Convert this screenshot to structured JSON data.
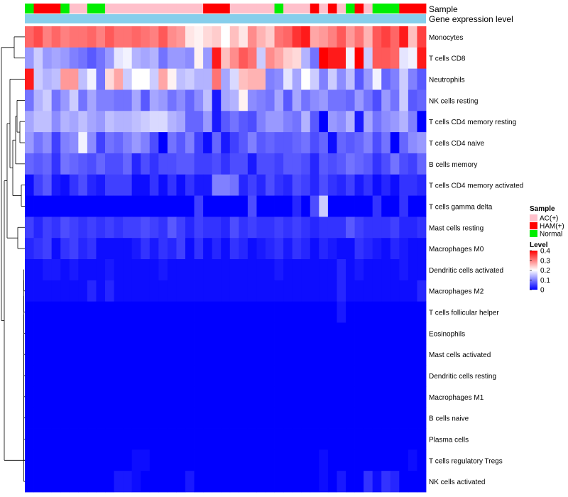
{
  "chart_data": {
    "type": "heatmap",
    "title": "",
    "annotation_rows": [
      "Sample",
      "Gene expression level"
    ],
    "sample_groups": [
      "Normal",
      "HAM(+)",
      "HAM(+)",
      "HAM(+)",
      "Normal",
      "AC(+)",
      "AC(+)",
      "Normal",
      "Normal",
      "AC(+)",
      "AC(+)",
      "AC(+)",
      "AC(+)",
      "AC(+)",
      "AC(+)",
      "AC(+)",
      "AC(+)",
      "AC(+)",
      "AC(+)",
      "AC(+)",
      "HAM(+)",
      "HAM(+)",
      "HAM(+)",
      "AC(+)",
      "AC(+)",
      "AC(+)",
      "AC(+)",
      "AC(+)",
      "Normal",
      "AC(+)",
      "AC(+)",
      "AC(+)",
      "HAM(+)",
      "AC(+)",
      "HAM(+)",
      "AC(+)",
      "Normal",
      "HAM(+)",
      "AC(+)",
      "Normal",
      "Normal",
      "Normal",
      "HAM(+)",
      "HAM(+)",
      "HAM(+)"
    ],
    "rows": [
      "Monocytes",
      "T cells CD8",
      "Neutrophils",
      "NK cells resting",
      "T cells CD4 memory resting",
      "T cells CD4 naive",
      "B cells memory",
      "T cells CD4 memory activated",
      "T cells gamma delta",
      "Mast cells resting",
      "Macrophages M0",
      "Dendritic cells activated",
      "Macrophages M2",
      "T cells follicular helper",
      "Eosinophils",
      "Mast cells activated",
      "Dendritic cells resting",
      "Macrophages M1",
      "B cells naive",
      "Plasma cells",
      "T cells regulatory  Tregs",
      "NK cells activated"
    ],
    "values": [
      [
        0.32,
        0.34,
        0.3,
        0.32,
        0.3,
        0.31,
        0.31,
        0.32,
        0.3,
        0.33,
        0.31,
        0.31,
        0.32,
        0.31,
        0.3,
        0.33,
        0.29,
        0.28,
        0.22,
        0.21,
        0.23,
        0.24,
        0.2,
        0.25,
        0.22,
        0.29,
        0.26,
        0.24,
        0.31,
        0.32,
        0.36,
        0.38,
        0.27,
        0.28,
        0.3,
        0.33,
        0.28,
        0.31,
        0.26,
        0.33,
        0.35,
        0.32,
        0.38,
        0.25,
        0.35
      ],
      [
        0.12,
        0.16,
        0.12,
        0.13,
        0.12,
        0.1,
        0.09,
        0.07,
        0.09,
        0.12,
        0.18,
        0.19,
        0.14,
        0.13,
        0.14,
        0.09,
        0.12,
        0.12,
        0.11,
        0.21,
        0.12,
        0.38,
        0.25,
        0.29,
        0.33,
        0.31,
        0.16,
        0.29,
        0.27,
        0.24,
        0.23,
        0.14,
        0.09,
        0.4,
        0.38,
        0.38,
        0.19,
        0.41,
        0.16,
        0.33,
        0.33,
        0.32,
        0.18,
        0.19,
        0.38
      ],
      [
        0.38,
        0.16,
        0.14,
        0.15,
        0.28,
        0.28,
        0.15,
        0.19,
        0.09,
        0.23,
        0.27,
        0.16,
        0.2,
        0.2,
        0.16,
        0.27,
        0.21,
        0.15,
        0.16,
        0.14,
        0.14,
        0.31,
        0.13,
        0.17,
        0.25,
        0.26,
        0.26,
        0.1,
        0.11,
        0.18,
        0.13,
        0.2,
        0.16,
        0.1,
        0.16,
        0.11,
        0.15,
        0.07,
        0.12,
        0.19,
        0.08,
        0.1,
        0.16,
        0.1,
        0.07
      ],
      [
        0.09,
        0.14,
        0.16,
        0.09,
        0.12,
        0.16,
        0.09,
        0.13,
        0.1,
        0.1,
        0.09,
        0.09,
        0.13,
        0.07,
        0.13,
        0.12,
        0.09,
        0.11,
        0.08,
        0.11,
        0.15,
        0.02,
        0.13,
        0.14,
        0.21,
        0.11,
        0.1,
        0.09,
        0.13,
        0.07,
        0.13,
        0.09,
        0.11,
        0.12,
        0.09,
        0.09,
        0.08,
        0.12,
        0.09,
        0.06,
        0.12,
        0.09,
        0.16,
        0.07,
        0.08
      ],
      [
        0.13,
        0.15,
        0.15,
        0.11,
        0.14,
        0.13,
        0.15,
        0.13,
        0.12,
        0.15,
        0.14,
        0.14,
        0.15,
        0.16,
        0.17,
        0.17,
        0.14,
        0.13,
        0.08,
        0.08,
        0.12,
        0.02,
        0.07,
        0.09,
        0.07,
        0.06,
        0.1,
        0.12,
        0.12,
        0.1,
        0.09,
        0.14,
        0.07,
        0.0,
        0.12,
        0.11,
        0.14,
        0.02,
        0.13,
        0.09,
        0.11,
        0.12,
        0.14,
        0.1,
        0.0
      ],
      [
        0.12,
        0.09,
        0.11,
        0.05,
        0.1,
        0.11,
        0.19,
        0.11,
        0.05,
        0.09,
        0.08,
        0.1,
        0.12,
        0.1,
        0.06,
        0.0,
        0.09,
        0.07,
        0.1,
        0.05,
        0.01,
        0.08,
        0.02,
        0.05,
        0.07,
        0.1,
        0.07,
        0.08,
        0.07,
        0.07,
        0.08,
        0.09,
        0.06,
        0.08,
        0.01,
        0.08,
        0.07,
        0.08,
        0.1,
        0.06,
        0.09,
        0.0,
        0.08,
        0.11,
        0.12
      ],
      [
        0.08,
        0.07,
        0.08,
        0.04,
        0.09,
        0.08,
        0.07,
        0.06,
        0.08,
        0.06,
        0.06,
        0.08,
        0.03,
        0.06,
        0.04,
        0.06,
        0.06,
        0.07,
        0.07,
        0.05,
        0.05,
        0.06,
        0.04,
        0.06,
        0.06,
        0.02,
        0.06,
        0.06,
        0.05,
        0.07,
        0.07,
        0.06,
        0.03,
        0.07,
        0.06,
        0.07,
        0.09,
        0.08,
        0.07,
        0.04,
        0.06,
        0.09,
        0.06,
        0.05,
        0.08
      ],
      [
        0.01,
        0.05,
        0.07,
        0.02,
        0.01,
        0.04,
        0.06,
        0.03,
        0.02,
        0.05,
        0.05,
        0.05,
        0.01,
        0.01,
        0.04,
        0.01,
        0.04,
        0.01,
        0.04,
        0.02,
        0.02,
        0.1,
        0.1,
        0.09,
        0.03,
        0.05,
        0.03,
        0.06,
        0.04,
        0.03,
        0.06,
        0.05,
        0.03,
        0.06,
        0.04,
        0.03,
        0.05,
        0.02,
        0.04,
        0.01,
        0.03,
        0.01,
        0.04,
        0.04,
        0.03
      ],
      [
        0.0,
        0.0,
        0.0,
        0.0,
        0.0,
        0.0,
        0.0,
        0.0,
        0.0,
        0.0,
        0.0,
        0.0,
        0.0,
        0.0,
        0.0,
        0.0,
        0.0,
        0.0,
        0.0,
        0.05,
        0.0,
        0.0,
        0.0,
        0.0,
        0.0,
        0.06,
        0.0,
        0.0,
        0.0,
        0.0,
        0.03,
        0.0,
        0.06,
        0.16,
        0.0,
        0.0,
        0.0,
        0.0,
        0.0,
        0.04,
        0.0,
        0.0,
        0.04,
        0.0,
        0.0
      ],
      [
        0.05,
        0.03,
        0.05,
        0.04,
        0.06,
        0.05,
        0.04,
        0.05,
        0.04,
        0.05,
        0.04,
        0.05,
        0.05,
        0.06,
        0.05,
        0.04,
        0.07,
        0.05,
        0.03,
        0.05,
        0.04,
        0.04,
        0.03,
        0.06,
        0.04,
        0.05,
        0.04,
        0.04,
        0.05,
        0.04,
        0.05,
        0.04,
        0.03,
        0.04,
        0.04,
        0.04,
        0.07,
        0.05,
        0.04,
        0.04,
        0.04,
        0.05,
        0.03,
        0.03,
        0.04
      ],
      [
        0.03,
        0.04,
        0.05,
        0.01,
        0.04,
        0.05,
        0.03,
        0.04,
        0.01,
        0.01,
        0.01,
        0.01,
        0.02,
        0.04,
        0.02,
        0.04,
        0.03,
        0.05,
        0.01,
        0.04,
        0.01,
        0.03,
        0.01,
        0.04,
        0.03,
        0.01,
        0.02,
        0.03,
        0.04,
        0.02,
        0.04,
        0.03,
        0.01,
        0.03,
        0.02,
        0.01,
        0.01,
        0.04,
        0.03,
        0.02,
        0.01,
        0.03,
        0.02,
        0.01,
        0.01
      ],
      [
        0.01,
        0.01,
        0.02,
        0.02,
        0.01,
        0.02,
        0.01,
        0.01,
        0.01,
        0.02,
        0.01,
        0.01,
        0.01,
        0.01,
        0.01,
        0.02,
        0.01,
        0.01,
        0.01,
        0.01,
        0.01,
        0.01,
        0.01,
        0.01,
        0.01,
        0.01,
        0.01,
        0.01,
        0.02,
        0.01,
        0.01,
        0.01,
        0.01,
        0.01,
        0.01,
        0.03,
        0.01,
        0.02,
        0.01,
        0.01,
        0.01,
        0.01,
        0.02,
        0.01,
        0.01
      ],
      [
        0.01,
        0.01,
        0.01,
        0.01,
        0.01,
        0.01,
        0.01,
        0.03,
        0.01,
        0.03,
        0.01,
        0.01,
        0.01,
        0.01,
        0.01,
        0.01,
        0.01,
        0.01,
        0.01,
        0.01,
        0.01,
        0.01,
        0.01,
        0.01,
        0.01,
        0.01,
        0.01,
        0.01,
        0.01,
        0.01,
        0.01,
        0.01,
        0.01,
        0.01,
        0.01,
        0.03,
        0.01,
        0.01,
        0.01,
        0.01,
        0.01,
        0.01,
        0.01,
        0.01,
        0.03
      ],
      [
        0.0,
        0.0,
        0.0,
        0.0,
        0.0,
        0.0,
        0.0,
        0.0,
        0.0,
        0.0,
        0.0,
        0.0,
        0.0,
        0.0,
        0.0,
        0.0,
        0.0,
        0.0,
        0.0,
        0.0,
        0.0,
        0.0,
        0.0,
        0.0,
        0.0,
        0.0,
        0.0,
        0.0,
        0.0,
        0.0,
        0.0,
        0.0,
        0.0,
        0.0,
        0.0,
        0.02,
        0.0,
        0.0,
        0.0,
        0.0,
        0.0,
        0.0,
        0.0,
        0.0,
        0.0
      ],
      [
        0.0,
        0.0,
        0.0,
        0.0,
        0.0,
        0.0,
        0.0,
        0.0,
        0.0,
        0.0,
        0.0,
        0.0,
        0.0,
        0.0,
        0.0,
        0.0,
        0.0,
        0.0,
        0.0,
        0.0,
        0.0,
        0.0,
        0.0,
        0.0,
        0.0,
        0.0,
        0.0,
        0.0,
        0.0,
        0.0,
        0.0,
        0.0,
        0.0,
        0.0,
        0.0,
        0.0,
        0.0,
        0.0,
        0.0,
        0.0,
        0.0,
        0.0,
        0.0,
        0.0,
        0.0
      ],
      [
        0.0,
        0.0,
        0.0,
        0.0,
        0.0,
        0.0,
        0.0,
        0.0,
        0.0,
        0.0,
        0.0,
        0.0,
        0.0,
        0.0,
        0.0,
        0.0,
        0.0,
        0.0,
        0.0,
        0.0,
        0.0,
        0.0,
        0.0,
        0.0,
        0.0,
        0.0,
        0.0,
        0.0,
        0.0,
        0.0,
        0.0,
        0.0,
        0.0,
        0.0,
        0.0,
        0.0,
        0.0,
        0.0,
        0.0,
        0.0,
        0.0,
        0.0,
        0.0,
        0.0,
        0.0
      ],
      [
        0.0,
        0.0,
        0.0,
        0.0,
        0.0,
        0.0,
        0.0,
        0.0,
        0.0,
        0.0,
        0.0,
        0.0,
        0.0,
        0.0,
        0.0,
        0.0,
        0.0,
        0.0,
        0.0,
        0.0,
        0.0,
        0.0,
        0.0,
        0.0,
        0.0,
        0.0,
        0.0,
        0.0,
        0.0,
        0.0,
        0.0,
        0.0,
        0.0,
        0.0,
        0.0,
        0.0,
        0.0,
        0.0,
        0.0,
        0.0,
        0.0,
        0.0,
        0.0,
        0.0,
        0.0
      ],
      [
        0.0,
        0.0,
        0.0,
        0.0,
        0.0,
        0.0,
        0.0,
        0.0,
        0.0,
        0.0,
        0.0,
        0.0,
        0.0,
        0.0,
        0.0,
        0.0,
        0.0,
        0.0,
        0.0,
        0.0,
        0.0,
        0.0,
        0.0,
        0.0,
        0.0,
        0.0,
        0.0,
        0.0,
        0.0,
        0.0,
        0.0,
        0.0,
        0.0,
        0.0,
        0.0,
        0.0,
        0.0,
        0.0,
        0.0,
        0.0,
        0.0,
        0.0,
        0.0,
        0.0,
        0.0
      ],
      [
        0.0,
        0.0,
        0.0,
        0.0,
        0.0,
        0.0,
        0.0,
        0.0,
        0.0,
        0.0,
        0.0,
        0.0,
        0.0,
        0.0,
        0.0,
        0.0,
        0.0,
        0.0,
        0.0,
        0.0,
        0.0,
        0.0,
        0.0,
        0.0,
        0.0,
        0.0,
        0.0,
        0.0,
        0.0,
        0.0,
        0.0,
        0.0,
        0.0,
        0.0,
        0.0,
        0.0,
        0.0,
        0.0,
        0.0,
        0.0,
        0.0,
        0.0,
        0.0,
        0.0,
        0.0
      ],
      [
        0.0,
        0.0,
        0.0,
        0.0,
        0.0,
        0.0,
        0.0,
        0.0,
        0.0,
        0.0,
        0.0,
        0.0,
        0.0,
        0.0,
        0.0,
        0.0,
        0.0,
        0.0,
        0.0,
        0.0,
        0.0,
        0.0,
        0.0,
        0.0,
        0.0,
        0.0,
        0.0,
        0.0,
        0.0,
        0.0,
        0.0,
        0.0,
        0.0,
        0.0,
        0.0,
        0.0,
        0.0,
        0.0,
        0.0,
        0.0,
        0.0,
        0.0,
        0.0,
        0.0,
        0.0
      ],
      [
        0.0,
        0.0,
        0.0,
        0.0,
        0.0,
        0.0,
        0.0,
        0.0,
        0.0,
        0.0,
        0.0,
        0.0,
        0.01,
        0.01,
        0.0,
        0.0,
        0.0,
        0.0,
        0.0,
        0.0,
        0.0,
        0.0,
        0.0,
        0.0,
        0.0,
        0.0,
        0.0,
        0.0,
        0.0,
        0.0,
        0.0,
        0.0,
        0.0,
        0.01,
        0.0,
        0.0,
        0.0,
        0.0,
        0.0,
        0.0,
        0.0,
        0.0,
        0.0,
        0.01,
        0.0
      ],
      [
        0.0,
        0.0,
        0.0,
        0.0,
        0.0,
        0.0,
        0.0,
        0.0,
        0.0,
        0.0,
        0.02,
        0.02,
        0.01,
        0.0,
        0.0,
        0.0,
        0.0,
        0.0,
        0.02,
        0.0,
        0.0,
        0.0,
        0.0,
        0.0,
        0.0,
        0.0,
        0.0,
        0.0,
        0.0,
        0.0,
        0.0,
        0.0,
        0.0,
        0.01,
        0.0,
        0.02,
        0.0,
        0.0,
        0.04,
        0.01,
        0.04,
        0.03,
        0.0,
        0.0,
        0.0
      ]
    ],
    "legend": {
      "sample_title": "Sample",
      "sample_entries": [
        {
          "label": "AC(+)",
          "color": "#FFC0CB"
        },
        {
          "label": "HAM(+)",
          "color": "#FF0000"
        },
        {
          "label": "Normal",
          "color": "#00EE00"
        }
      ],
      "level_title": "Level",
      "level_ticks": [
        "0.4",
        "0.3",
        "0.2",
        "0.1",
        "0"
      ],
      "level_tick_values": [
        0.4,
        0.3,
        0.2,
        0.1,
        0
      ]
    },
    "color_scale": {
      "low": "#0000FF",
      "mid": "#FFFFFF",
      "high": "#FF0000",
      "min": 0,
      "mid_value": 0.2,
      "max": 0.4
    },
    "expression_bar_color": "#87CEEB",
    "dendrogram_color": "#000000"
  }
}
